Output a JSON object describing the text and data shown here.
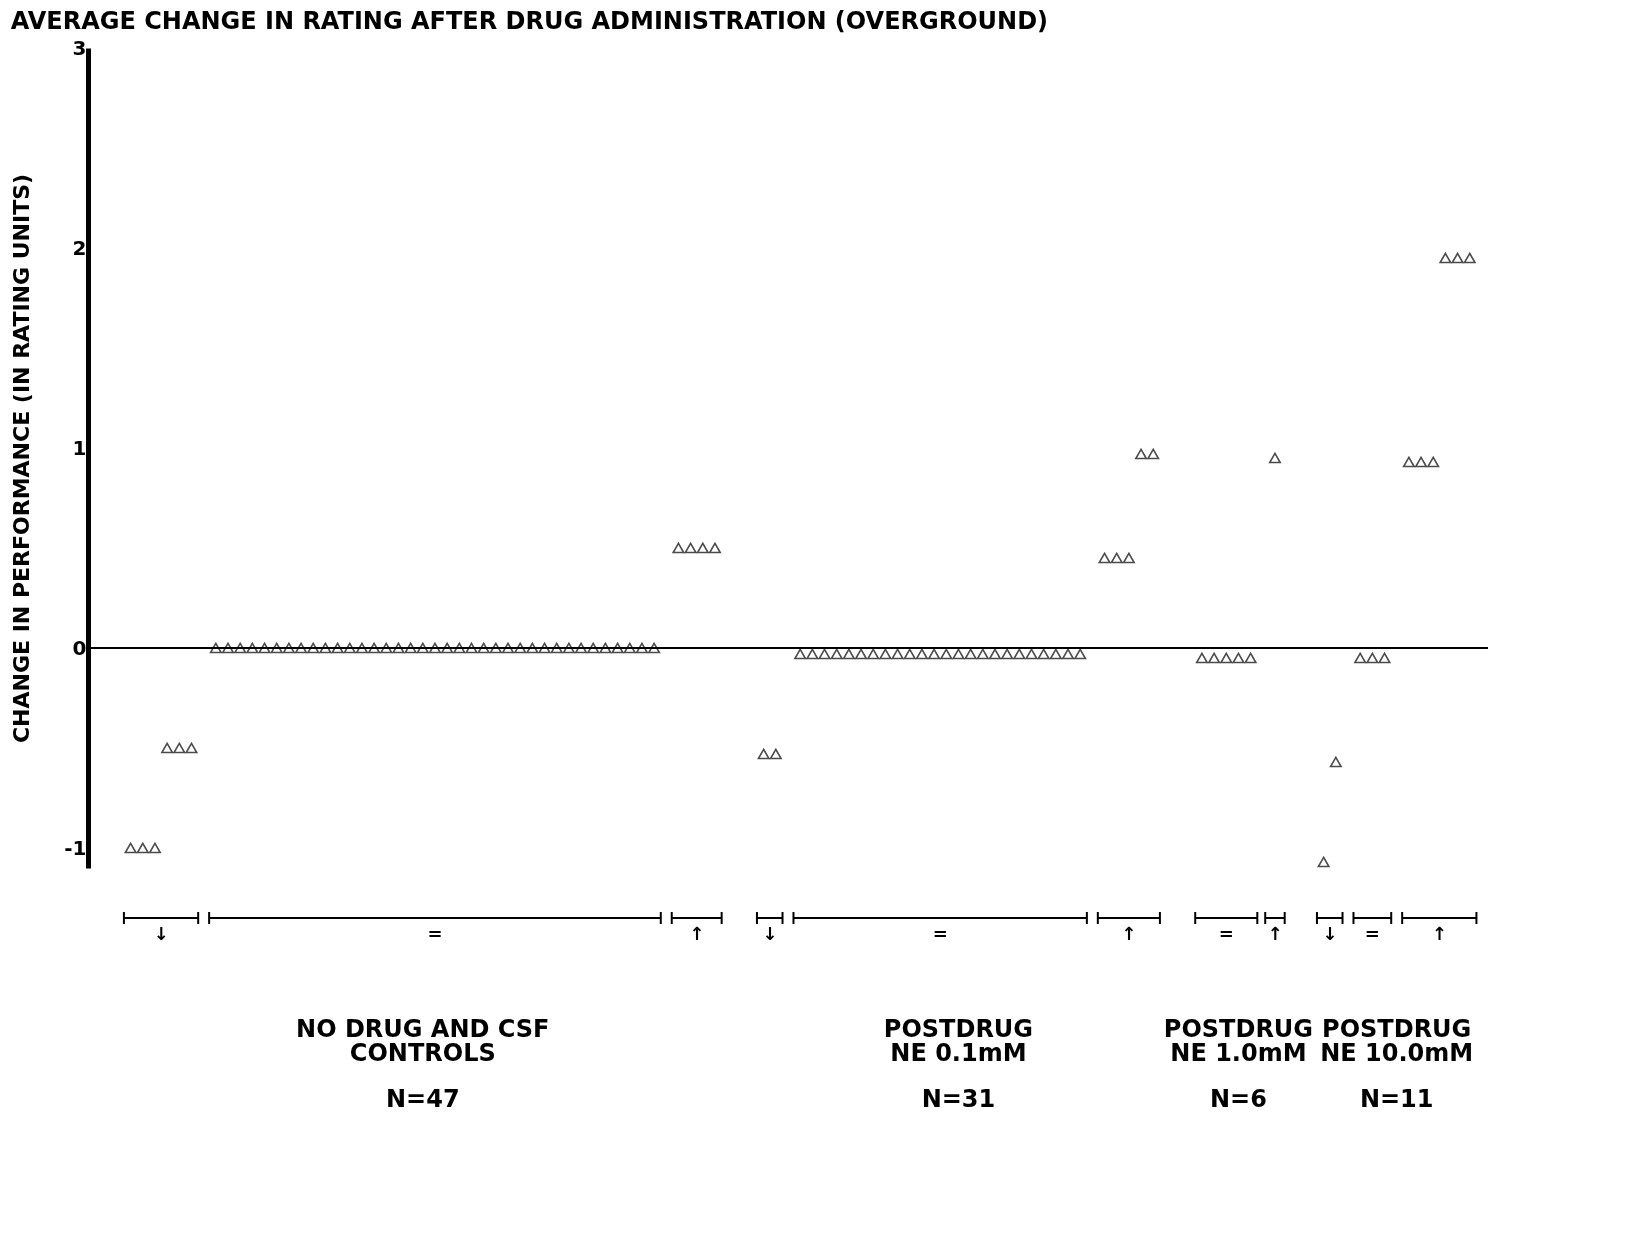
{
  "chart_data": {
    "type": "scatter",
    "title": "AVERAGE CHANGE IN RATING AFTER DRUG ADMINISTRATION (OVERGROUND)",
    "ylabel": "CHANGE IN PERFORMANCE (IN RATING UNITS)",
    "categories": [
      null,
      null,
      null,
      null,
      null,
      null,
      null,
      null,
      null,
      null,
      null,
      null,
      null,
      null,
      null,
      null,
      null,
      null,
      null,
      null,
      null,
      null,
      null,
      null,
      null,
      null,
      null,
      null,
      null,
      null,
      null,
      null,
      null,
      null,
      null,
      null,
      null,
      null,
      null,
      null,
      null,
      null,
      null,
      null,
      null,
      null,
      null,
      null,
      null,
      null,
      null,
      null,
      null,
      null,
      null,
      null,
      null,
      null,
      null,
      null,
      null,
      null,
      null,
      null,
      null,
      null,
      null,
      null,
      null,
      null,
      null,
      null,
      null,
      null,
      null,
      null,
      null,
      null,
      null,
      null,
      null,
      null,
      null,
      null,
      null,
      null,
      null,
      null,
      null,
      null,
      null,
      null,
      null,
      null,
      null,
      null,
      null,
      null,
      null,
      null,
      null,
      null,
      null,
      null,
      null,
      null,
      null,
      null,
      null,
      null,
      null,
      null,
      null,
      null,
      null
    ],
    "series": [
      {
        "color": "#000000",
        "values": [
          null,
          null,
          null,
          -1,
          -1,
          -1,
          -0.5,
          -0.5,
          -0.5,
          null,
          0,
          0,
          0,
          0,
          0,
          0,
          0,
          0,
          0,
          0,
          0,
          0,
          0,
          0,
          0,
          0,
          0,
          0,
          0,
          0,
          0,
          0,
          0,
          0,
          0,
          0,
          0,
          0,
          0,
          0,
          0,
          0,
          0,
          0,
          0,
          0,
          0,
          null,
          0.5,
          0.5,
          0.5,
          0.5,
          null,
          null,
          null,
          -0.53,
          -0.53,
          null,
          -0.03,
          -0.03,
          -0.03,
          -0.03,
          -0.03,
          -0.03,
          -0.03,
          -0.03,
          -0.03,
          -0.03,
          -0.03,
          -0.03,
          -0.03,
          -0.03,
          -0.03,
          -0.03,
          -0.03,
          -0.03,
          -0.03,
          -0.03,
          -0.03,
          -0.03,
          -0.03,
          -0.03,
          null,
          0.45,
          0.45,
          0.45,
          0.97,
          0.97,
          null,
          null,
          null,
          -0.05,
          -0.05,
          -0.05,
          -0.05,
          -0.05,
          null,
          0.95,
          null,
          null,
          null,
          -1.07,
          -0.57,
          null,
          -0.05,
          -0.05,
          -0.05,
          null,
          0.93,
          0.93,
          0.93,
          1.95,
          1.95,
          1.95,
          null
        ]
      }
    ],
    "ylim": [
      -1.1,
      3
    ],
    "yticks": [
      -1,
      0,
      1,
      2,
      3
    ],
    "grid": false,
    "legend": false,
    "marker": "triangle",
    "ref_lines": [
      {
        "axis": "y",
        "value": 0,
        "color": "#000000"
      }
    ],
    "annotations": [
      "↓",
      "=",
      "↑",
      "NO DRUG AND CSF\nCONTROLS",
      "N=47",
      "↓",
      "=",
      "↑",
      "POSTDRUG\nNE 0.1mM",
      "N=31",
      "=",
      "↑",
      "POSTDRUG\nNE 1.0mM",
      "N=6",
      "↓",
      "=",
      "↑",
      "POSTDRUG\nNE 10.0mM",
      "N=11"
    ]
  }
}
